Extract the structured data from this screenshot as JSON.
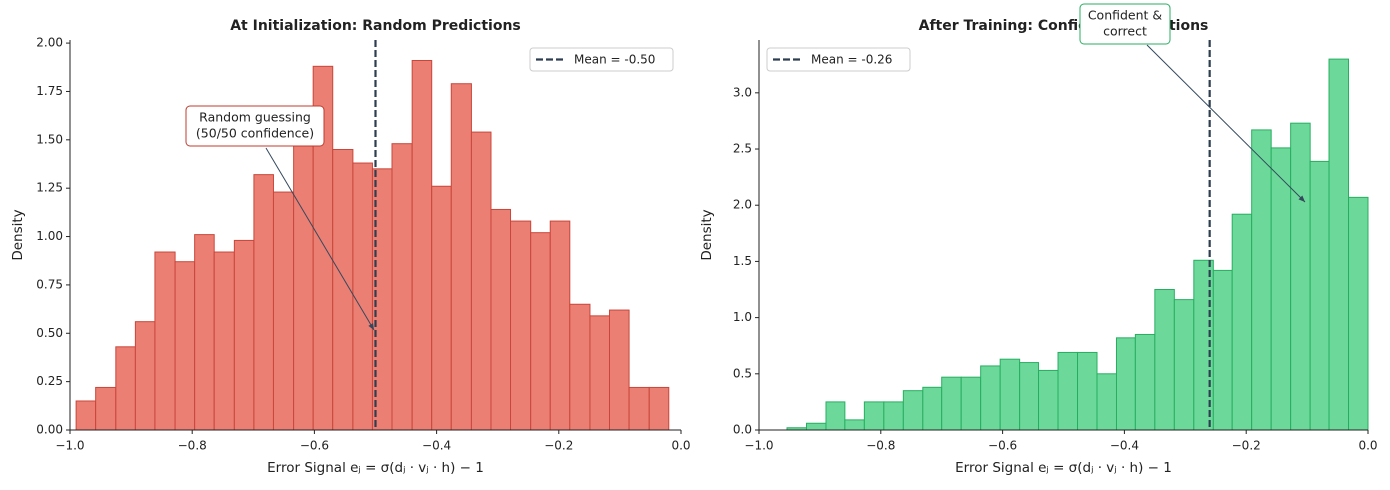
{
  "chart_data": [
    {
      "type": "histogram",
      "title": "At Initialization: Random Predictions",
      "xlabel": "Error Signal eⱼ = σ(dⱼ · vⱼ · h) − 1",
      "ylabel": "Density",
      "bins": [
        -0.99,
        -0.958,
        -0.925,
        -0.893,
        -0.861,
        -0.828,
        -0.796,
        -0.764,
        -0.731,
        -0.699,
        -0.667,
        -0.634,
        -0.602,
        -0.57,
        -0.537,
        -0.505,
        -0.473,
        -0.44,
        -0.408,
        -0.376,
        -0.343,
        -0.311,
        -0.279,
        -0.246,
        -0.214,
        -0.182,
        -0.149,
        -0.117,
        -0.085,
        -0.052,
        -0.02
      ],
      "values": [
        0.15,
        0.22,
        0.43,
        0.56,
        0.92,
        0.87,
        1.01,
        0.92,
        0.98,
        1.32,
        1.23,
        1.5,
        1.88,
        1.45,
        1.38,
        1.35,
        1.48,
        1.91,
        1.26,
        1.79,
        1.54,
        1.14,
        1.08,
        1.02,
        1.08,
        0.65,
        0.59,
        0.62,
        0.22,
        0.22
      ],
      "color": "#ec7f73",
      "edgecolor": "#c9463a",
      "xlim": [
        -1.0,
        0.0
      ],
      "ylim": [
        0,
        2.016
      ],
      "xticks": [
        {
          "value": -1.0,
          "label": "−1.0"
        },
        {
          "value": -0.8,
          "label": "−0.8"
        },
        {
          "value": -0.6,
          "label": "−0.6"
        },
        {
          "value": -0.4,
          "label": "−0.4"
        },
        {
          "value": -0.2,
          "label": "−0.2"
        },
        {
          "value": 0.0,
          "label": "0.0"
        }
      ],
      "yticks": [
        {
          "value": 0,
          "label": "0.00"
        },
        {
          "value": 0.25,
          "label": "0.25"
        },
        {
          "value": 0.5,
          "label": "0.50"
        },
        {
          "value": 0.75,
          "label": "0.75"
        },
        {
          "value": 1.0,
          "label": "1.00"
        },
        {
          "value": 1.25,
          "label": "1.25"
        },
        {
          "value": 1.5,
          "label": "1.50"
        },
        {
          "value": 1.75,
          "label": "1.75"
        },
        {
          "value": 2.0,
          "label": "2.00"
        }
      ],
      "mean": -0.5,
      "mean_label": "Mean = -0.50",
      "mean_color": "#2c3e50",
      "legend": "upper right",
      "annotation": [
        "Random guessing",
        "(50/50 confidence)"
      ],
      "annotation_color": "#c0392b"
    },
    {
      "type": "histogram",
      "title": "After Training: Confident Predictions",
      "xlabel": "Error Signal eⱼ = σ(dⱼ · vⱼ · h) − 1",
      "ylabel": "Density",
      "bins": [
        -0.954,
        -0.922,
        -0.89,
        -0.859,
        -0.827,
        -0.795,
        -0.763,
        -0.731,
        -0.7,
        -0.668,
        -0.636,
        -0.604,
        -0.572,
        -0.541,
        -0.509,
        -0.477,
        -0.445,
        -0.413,
        -0.382,
        -0.35,
        -0.318,
        -0.286,
        -0.254,
        -0.223,
        -0.191,
        -0.159,
        -0.127,
        -0.095,
        -0.064,
        -0.032,
        0
      ],
      "values": [
        0.02,
        0.06,
        0.25,
        0.09,
        0.25,
        0.25,
        0.35,
        0.38,
        0.47,
        0.47,
        0.57,
        0.63,
        0.6,
        0.53,
        0.69,
        0.69,
        0.5,
        0.82,
        0.85,
        1.25,
        1.16,
        1.51,
        1.42,
        1.92,
        2.67,
        2.51,
        2.73,
        2.39,
        3.3,
        2.07
      ],
      "color": "#6cd99a",
      "edgecolor": "#27ae60",
      "xlim": [
        -1.0,
        0.0
      ],
      "ylim": [
        0,
        3.47
      ],
      "xticks": [
        {
          "value": -1.0,
          "label": "−1.0"
        },
        {
          "value": -0.8,
          "label": "−0.8"
        },
        {
          "value": -0.6,
          "label": "−0.6"
        },
        {
          "value": -0.4,
          "label": "−0.4"
        },
        {
          "value": -0.2,
          "label": "−0.2"
        },
        {
          "value": 0.0,
          "label": "0.0"
        }
      ],
      "yticks": [
        {
          "value": 0,
          "label": "0.0"
        },
        {
          "value": 0.5,
          "label": "0.5"
        },
        {
          "value": 1.0,
          "label": "1.0"
        },
        {
          "value": 1.5,
          "label": "1.5"
        },
        {
          "value": 2.0,
          "label": "2.0"
        },
        {
          "value": 2.5,
          "label": "2.5"
        },
        {
          "value": 3.0,
          "label": "3.0"
        }
      ],
      "mean": -0.26,
      "mean_label": "Mean = -0.26",
      "mean_color": "#2c3e50",
      "legend": "upper left",
      "annotation": [
        "Confident &",
        "correct"
      ],
      "annotation_color": "#27ae60"
    }
  ]
}
